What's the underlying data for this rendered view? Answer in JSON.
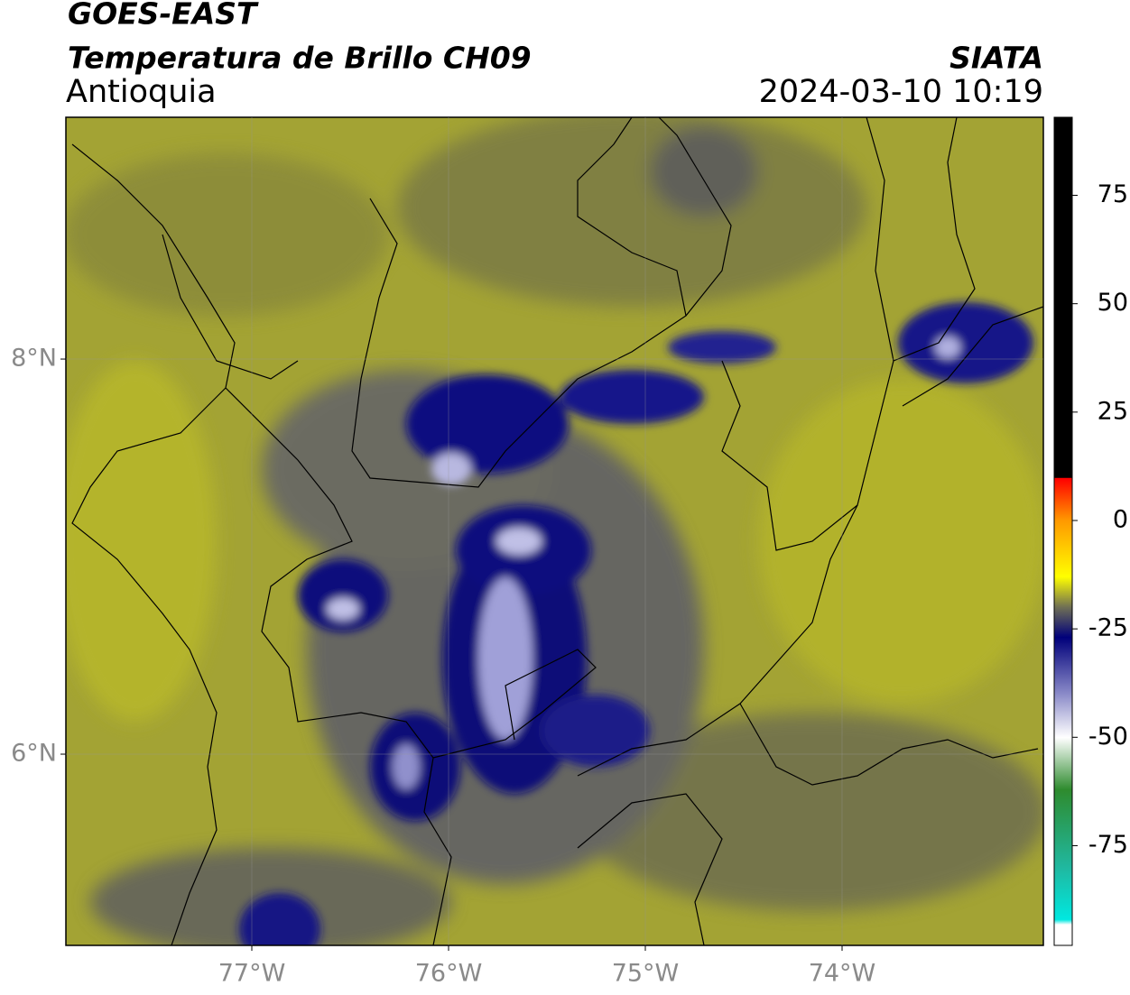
{
  "header": {
    "title": "GOES-EAST",
    "subtitle": "Temperatura de Brillo CH09",
    "region": "Antioquia",
    "source": "SIATA",
    "datetime": "2024-03-10 10:19"
  },
  "map": {
    "xlim": [
      -77.945,
      -72.977
    ],
    "ylim": [
      5.032,
      9.224
    ],
    "xticks": [
      {
        "value": -77,
        "label": "77°W"
      },
      {
        "value": -76,
        "label": "76°W"
      },
      {
        "value": -75,
        "label": "75°W"
      },
      {
        "value": -74,
        "label": "74°W"
      }
    ],
    "yticks": [
      {
        "value": 8,
        "label": "8°N"
      },
      {
        "value": 6,
        "label": "6°N"
      }
    ]
  },
  "colorbar": {
    "lim": [
      -98,
      93
    ],
    "ticks": [
      75,
      50,
      25,
      0,
      -25,
      -50,
      -75
    ]
  }
}
